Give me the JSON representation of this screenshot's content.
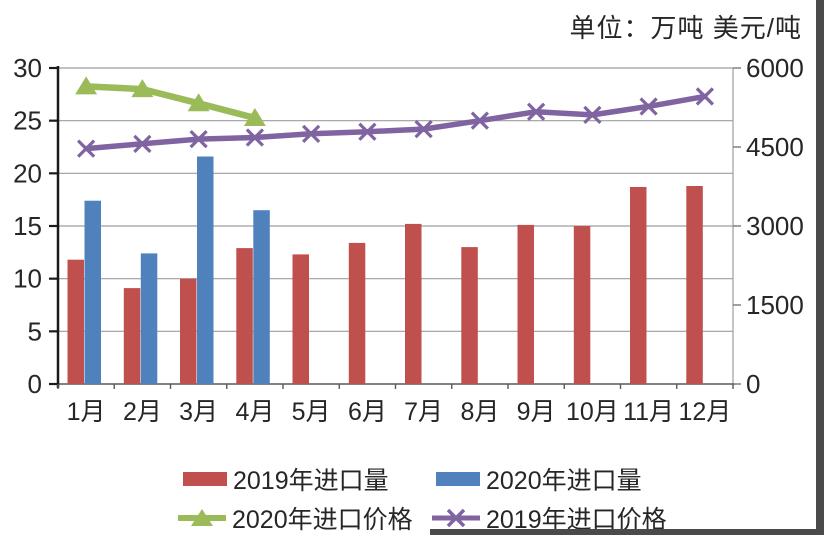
{
  "title": {
    "unit_label": "单位：万吨 美元/吨"
  },
  "chart_data": {
    "type": "bar",
    "subtype": "combo-bar-line-dual-axis",
    "categories": [
      "1月",
      "2月",
      "3月",
      "4月",
      "5月",
      "6月",
      "7月",
      "8月",
      "9月",
      "10月",
      "11月",
      "12月"
    ],
    "left_axis": {
      "label": "万吨",
      "min": 0,
      "max": 30,
      "ticks": [
        30,
        25,
        20,
        15,
        10,
        5,
        0
      ]
    },
    "right_axis": {
      "label": "美元/吨",
      "min": 0,
      "max": 6000,
      "ticks": [
        6000,
        4500,
        3000,
        1500,
        0
      ]
    },
    "grid": true,
    "legend_position": "bottom",
    "series": [
      {
        "name": "2019年进口量",
        "type": "bar",
        "axis": "left",
        "color": "#C0504D",
        "marker": "none",
        "values": [
          11.8,
          9.1,
          10.0,
          12.9,
          12.3,
          13.4,
          15.2,
          13.0,
          15.1,
          15.0,
          18.7,
          18.8
        ]
      },
      {
        "name": "2020年进口量",
        "type": "bar",
        "axis": "left",
        "color": "#4F81BD",
        "marker": "none",
        "values": [
          17.4,
          12.4,
          21.6,
          16.5
        ]
      },
      {
        "name": "2020年进口价格",
        "type": "line",
        "axis": "right",
        "color": "#9BBB59",
        "marker": "triangle",
        "values": [
          5650,
          5600,
          5330,
          5050
        ]
      },
      {
        "name": "2019年进口价格",
        "type": "line",
        "axis": "right",
        "color": "#8064A2",
        "marker": "x",
        "values": [
          4470,
          4560,
          4650,
          4680,
          4750,
          4790,
          4840,
          5000,
          5170,
          5110,
          5270,
          5460
        ]
      }
    ],
    "legend": [
      {
        "label": "2019年进口量",
        "swatch": "bar",
        "color": "#C0504D"
      },
      {
        "label": "2020年进口量",
        "swatch": "bar",
        "color": "#4F81BD"
      },
      {
        "label": "2020年进口价格",
        "swatch": "line-triangle",
        "color": "#9BBB59"
      },
      {
        "label": "2019年进口价格",
        "swatch": "line-x",
        "color": "#8064A2"
      }
    ]
  }
}
